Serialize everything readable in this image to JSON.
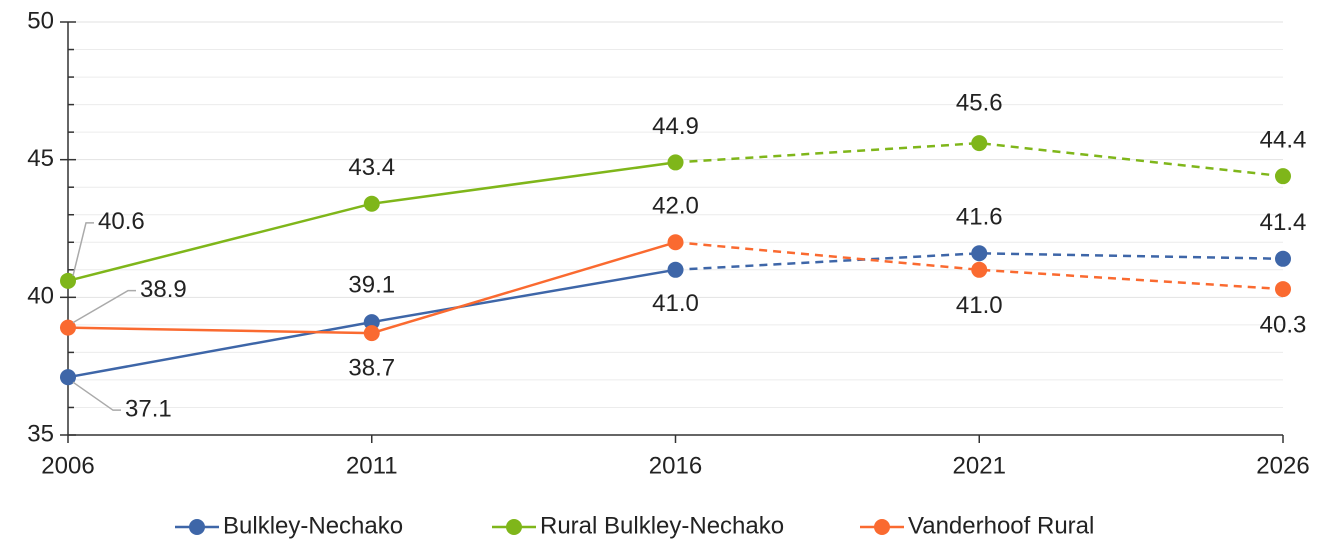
{
  "chart_data": {
    "type": "line",
    "x": [
      2006,
      2011,
      2016,
      2021,
      2026
    ],
    "xlim": [
      2006,
      2026
    ],
    "xticks": [
      2006,
      2011,
      2016,
      2021,
      2026
    ],
    "ylim": [
      35,
      50
    ],
    "yticks": [
      35,
      40,
      45,
      50
    ],
    "y_minor_ticks": [
      36,
      37,
      38,
      39,
      41,
      42,
      43,
      44,
      46,
      47,
      48,
      49
    ],
    "grid": true,
    "dashed_from_x": 2016,
    "legend": "bottom",
    "series": [
      {
        "name": "Bulkley-Nechako",
        "color": "#3e66a8",
        "values": [
          37.1,
          39.1,
          41.0,
          41.6,
          41.4
        ],
        "value_labels": [
          "37.1",
          "39.1",
          "41.0",
          "41.6",
          "41.4"
        ]
      },
      {
        "name": "Rural Bulkley-Nechako",
        "color": "#7fb61a",
        "values": [
          40.6,
          43.4,
          44.9,
          45.6,
          44.4
        ],
        "value_labels": [
          "40.6",
          "43.4",
          "44.9",
          "45.6",
          "44.4"
        ]
      },
      {
        "name": "Vanderhoof Rural",
        "color": "#fa6a30",
        "values": [
          38.9,
          38.7,
          42.0,
          41.0,
          40.3
        ],
        "value_labels": [
          "38.9",
          "38.7",
          "42.0",
          "41.0",
          "40.3"
        ]
      }
    ]
  }
}
